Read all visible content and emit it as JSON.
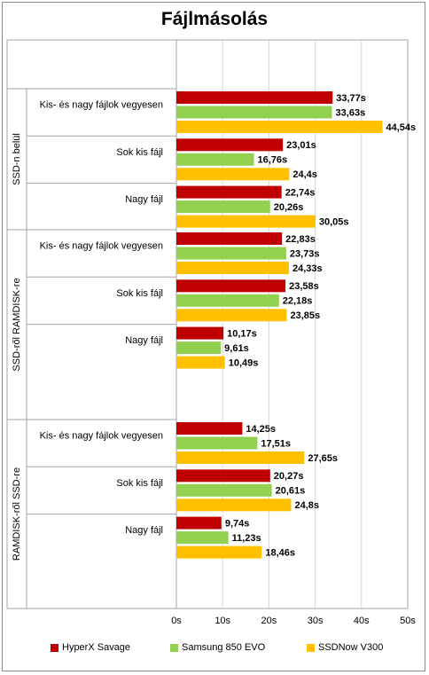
{
  "chart_data": {
    "type": "bar",
    "orientation": "horizontal",
    "title": "Fájlmásolás",
    "groups": [
      {
        "name": "SSD-n belül",
        "categories": [
          "Kis- és nagy fájlok vegyesen",
          "Sok kis fájl",
          "Nagy fájl"
        ]
      },
      {
        "name": "SSD-ről RAMDISK-re",
        "categories": [
          "Kis- és nagy fájlok vegyesen",
          "Sok kis fájl",
          "Nagy fájl"
        ]
      },
      {
        "name": "RAMDISK-ről SSD-re",
        "categories": [
          "Kis- és nagy fájlok vegyesen",
          "Sok kis fájl",
          "Nagy fájl"
        ]
      }
    ],
    "series": [
      {
        "name": "HyperX Savage",
        "color": "#c00000",
        "values": [
          33.77,
          23.01,
          22.74,
          22.83,
          23.58,
          10.17,
          14.25,
          20.27,
          9.74
        ],
        "labels": [
          "33,77s",
          "23,01s",
          "22,74s",
          "22,83s",
          "23,58s",
          "10,17s",
          "14,25s",
          "20,27s",
          "9,74s"
        ]
      },
      {
        "name": "Samsung 850 EVO",
        "color": "#92d050",
        "values": [
          33.63,
          16.76,
          20.26,
          23.73,
          22.18,
          9.61,
          17.51,
          20.61,
          11.23
        ],
        "labels": [
          "33,63s",
          "16,76s",
          "20,26s",
          "23,73s",
          "22,18s",
          "9,61s",
          "17,51s",
          "20,61s",
          "11,23s"
        ]
      },
      {
        "name": "SSDNow V300",
        "color": "#ffc000",
        "values": [
          44.54,
          24.4,
          30.05,
          24.33,
          23.85,
          10.49,
          27.65,
          24.8,
          18.46
        ],
        "labels": [
          "44,54s",
          "24,4s",
          "30,05s",
          "24,33s",
          "23,85s",
          "10,49s",
          "27,65s",
          "24,8s",
          "18,46s"
        ]
      }
    ],
    "xlim": [
      0,
      50
    ],
    "xticks": [
      "0s",
      "10s",
      "20s",
      "30s",
      "40s",
      "50s"
    ],
    "grid": true,
    "legend_position": "bottom"
  }
}
